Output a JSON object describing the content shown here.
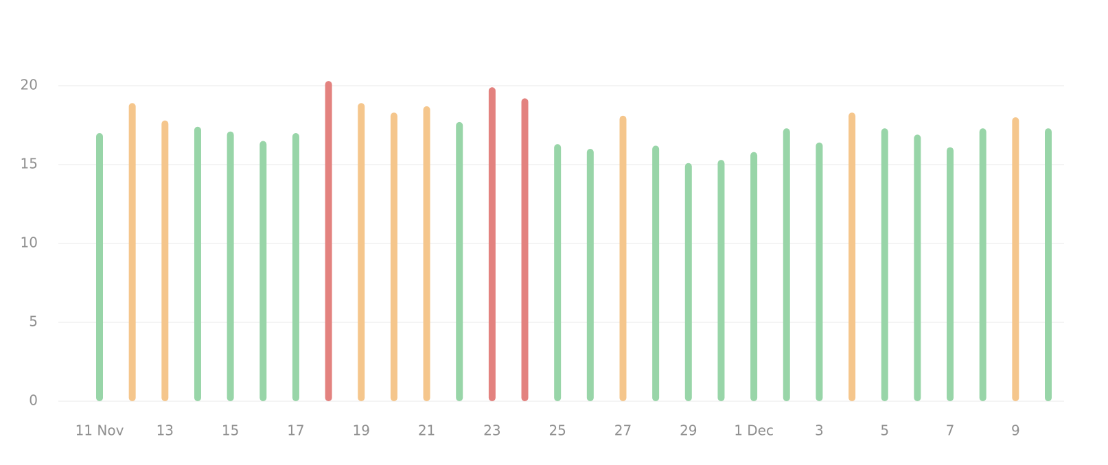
{
  "chart_data": {
    "type": "bar",
    "categories": [
      "11 Nov",
      null,
      "13",
      null,
      "15",
      null,
      "17",
      null,
      "19",
      null,
      "21",
      null,
      "23",
      null,
      "25",
      null,
      "27",
      null,
      "29",
      null,
      "1 Dec",
      null,
      "3",
      null,
      "5",
      null,
      "7",
      null,
      "9",
      null
    ],
    "values": [
      17.0,
      18.9,
      17.8,
      17.4,
      17.1,
      16.5,
      17.0,
      20.3,
      18.9,
      18.3,
      18.7,
      17.7,
      19.9,
      19.2,
      16.3,
      16.0,
      18.1,
      16.2,
      15.1,
      15.3,
      15.8,
      17.3,
      16.4,
      18.3,
      17.3,
      16.9,
      16.1,
      17.3,
      18.0,
      17.3
    ],
    "colors": [
      "#98d5a8",
      "#f5c68c",
      "#f5c68c",
      "#98d5a8",
      "#98d5a8",
      "#98d5a8",
      "#98d5a8",
      "#e3827f",
      "#f5c68c",
      "#f5c68c",
      "#f5c68c",
      "#98d5a8",
      "#e3827f",
      "#e3827f",
      "#98d5a8",
      "#98d5a8",
      "#f5c68c",
      "#98d5a8",
      "#98d5a8",
      "#98d5a8",
      "#98d5a8",
      "#98d5a8",
      "#98d5a8",
      "#f5c68c",
      "#98d5a8",
      "#98d5a8",
      "#98d5a8",
      "#98d5a8",
      "#f5c68c",
      "#98d5a8"
    ],
    "ylim": [
      0,
      22
    ],
    "yticks": [
      0,
      5,
      10,
      15,
      20
    ],
    "grid": true
  }
}
